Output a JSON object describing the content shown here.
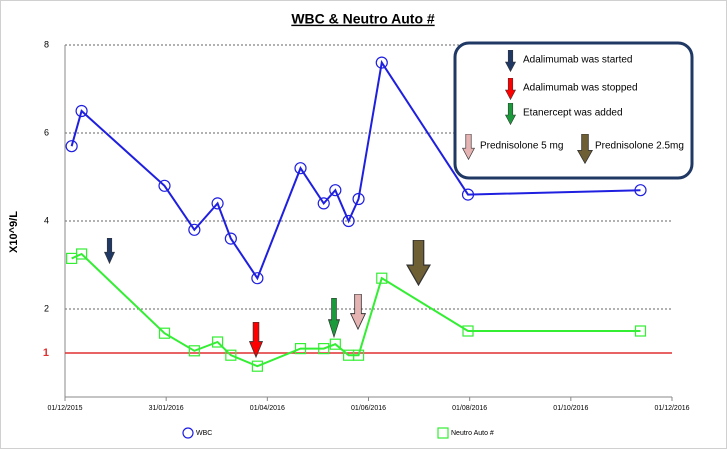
{
  "chart_data": {
    "type": "line",
    "title": "WBC & Neutro Auto #",
    "y_label": "X10^9/L",
    "xlim": [
      "2015-12-01",
      "2016-12-01"
    ],
    "xticks": [
      {
        "value": "2015-12-01",
        "label": "01/12/2015"
      },
      {
        "value": "2016-01-31",
        "label": "31/01/2016"
      },
      {
        "value": "2016-04-01",
        "label": "01/04/2016"
      },
      {
        "value": "2016-06-01",
        "label": "01/06/2016"
      },
      {
        "value": "2016-08-01",
        "label": "01/08/2016"
      },
      {
        "value": "2016-10-01",
        "label": "01/10/2016"
      },
      {
        "value": "2016-12-01",
        "label": "01/12/2016"
      }
    ],
    "ylim": [
      0,
      8
    ],
    "yticks": [
      2,
      4,
      6,
      8
    ],
    "grid": true,
    "threshold": {
      "value": 1,
      "color": "#e03030"
    },
    "series": [
      {
        "name": "WBC",
        "color": "#1f1fe0",
        "marker": "circle",
        "x": [
          "2015-12-05",
          "2015-12-11",
          "2016-01-30",
          "2016-02-17",
          "2016-03-02",
          "2016-03-10",
          "2016-03-26",
          "2016-04-21",
          "2016-05-05",
          "2016-05-12",
          "2016-05-20",
          "2016-05-26",
          "2016-06-09",
          "2016-07-31",
          "2016-11-12"
        ],
        "values": [
          5.7,
          6.5,
          4.8,
          3.8,
          4.4,
          3.6,
          2.7,
          5.2,
          4.4,
          4.7,
          4.0,
          4.5,
          7.6,
          4.6,
          4.7
        ]
      },
      {
        "name": "Neutro Auto #",
        "color": "#33ee33",
        "marker": "square",
        "x": [
          "2015-12-05",
          "2015-12-11",
          "2016-01-30",
          "2016-02-17",
          "2016-03-02",
          "2016-03-10",
          "2016-03-26",
          "2016-04-21",
          "2016-05-05",
          "2016-05-12",
          "2016-05-20",
          "2016-05-26",
          "2016-06-09",
          "2016-07-31",
          "2016-11-12"
        ],
        "values": [
          3.15,
          3.25,
          1.45,
          1.05,
          1.25,
          0.95,
          0.7,
          1.1,
          1.1,
          1.2,
          0.95,
          0.95,
          2.7,
          1.5,
          1.5
        ]
      }
    ],
    "annotations": [
      "Adalimumab was started",
      "Adalimumab was stopped",
      "Etanercept was added",
      "Prednisolone 5 mg",
      "Prednisolone 2.5mg"
    ]
  }
}
